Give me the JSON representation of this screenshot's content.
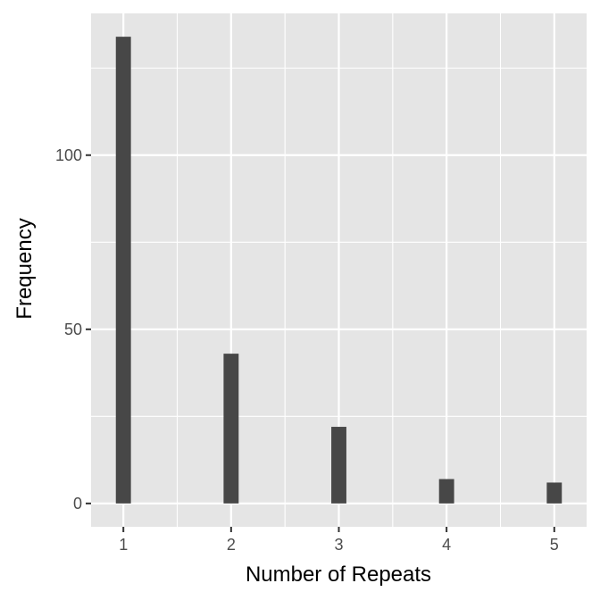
{
  "chart_data": {
    "type": "bar",
    "categories": [
      "1",
      "2",
      "3",
      "4",
      "5"
    ],
    "x": [
      1,
      2,
      3,
      4,
      5
    ],
    "values": [
      134,
      43,
      22,
      7,
      6
    ],
    "title": "",
    "xlabel": "Number of Repeats",
    "ylabel": "Frequency",
    "xlim": [
      0.7,
      5.3
    ],
    "ylim": [
      -6.7,
      140.7
    ],
    "yticks": [
      0,
      50,
      100
    ],
    "yticks_labels": [
      "0",
      "50",
      "100"
    ],
    "xticks": [
      1,
      2,
      3,
      4,
      5
    ],
    "xticks_labels": [
      "1",
      "2",
      "3",
      "4",
      "5"
    ],
    "x_minor_gridlines": [
      1.5,
      2.5,
      3.5,
      4.5
    ],
    "y_minor_gridlines": [
      25,
      75,
      125
    ],
    "bar_width": 0.14,
    "grid": true,
    "legend": "none",
    "colors": {
      "panel": "#e5e5e5",
      "grid": "#ffffff",
      "bar": "#474747",
      "tick": "#333333",
      "tick_label": "#4d4d4d",
      "axis_title": "#000000"
    }
  }
}
